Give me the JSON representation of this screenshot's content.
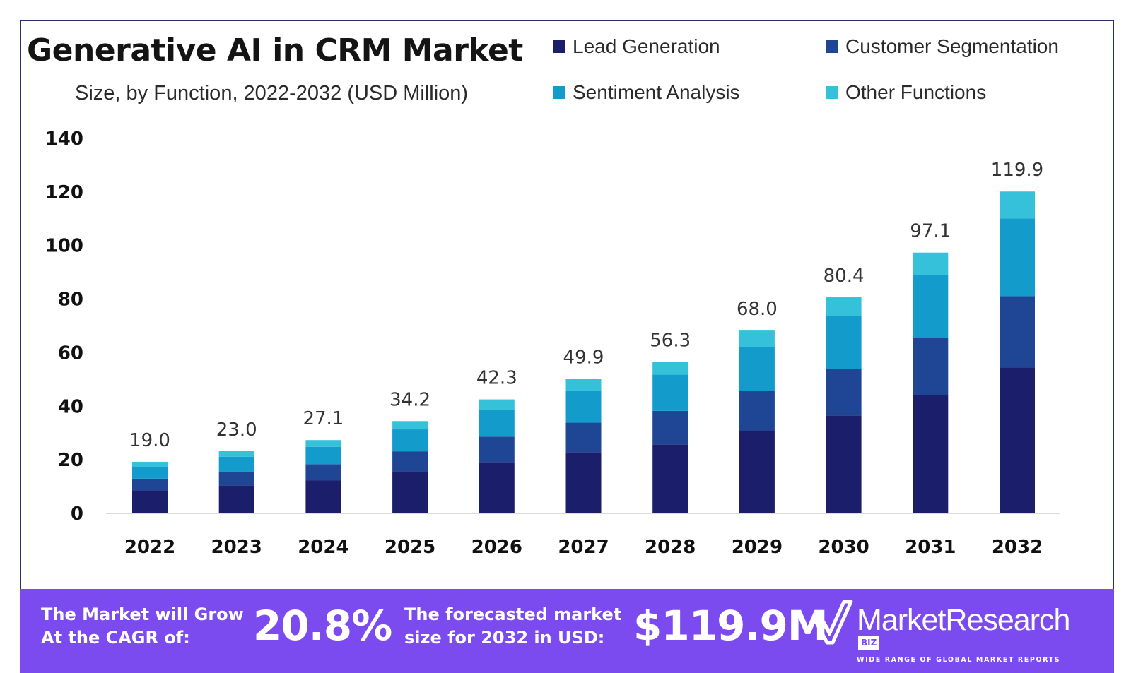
{
  "header": {
    "title": "Generative AI in CRM Market",
    "subtitle": "Size, by Function, 2022-2032 (USD Million)"
  },
  "legend": {
    "items": [
      {
        "label": "Lead Generation",
        "color": "#1b1f6b"
      },
      {
        "label": "Customer Segmentation",
        "color": "#1f4595"
      },
      {
        "label": "Sentiment Analysis",
        "color": "#129bcb"
      },
      {
        "label": "Other Functions",
        "color": "#36c1da"
      }
    ]
  },
  "chart_data": {
    "type": "bar",
    "stacked": true,
    "title": "Generative AI in CRM Market",
    "subtitle": "Size, by Function, 2022-2032 (USD Million)",
    "categories": [
      "2022",
      "2023",
      "2024",
      "2025",
      "2026",
      "2027",
      "2028",
      "2029",
      "2030",
      "2031",
      "2032"
    ],
    "series": [
      {
        "name": "Lead Generation",
        "color": "#1b1f6b",
        "values": [
          8.4,
          10.2,
          12.0,
          15.5,
          18.9,
          22.6,
          25.5,
          30.7,
          36.3,
          43.8,
          54.2
        ]
      },
      {
        "name": "Customer Segmentation",
        "color": "#1f4595",
        "values": [
          4.3,
          5.1,
          6.1,
          7.4,
          9.5,
          11.0,
          12.5,
          14.8,
          17.4,
          21.5,
          26.6
        ]
      },
      {
        "name": "Sentiment Analysis",
        "color": "#129bcb",
        "values": [
          4.4,
          5.6,
          6.5,
          8.2,
          10.1,
          11.9,
          13.6,
          16.4,
          19.6,
          23.3,
          29.0
        ]
      },
      {
        "name": "Other Functions",
        "color": "#36c1da",
        "values": [
          1.9,
          2.1,
          2.5,
          3.1,
          3.8,
          4.4,
          4.7,
          6.1,
          7.1,
          8.5,
          10.1
        ]
      }
    ],
    "totals": [
      "19.0",
      "23.0",
      "27.1",
      "34.2",
      "42.3",
      "49.9",
      "56.3",
      "68.0",
      "80.4",
      "97.1",
      "119.9"
    ],
    "ylim": [
      0,
      140
    ],
    "yticks": [
      0,
      20,
      40,
      60,
      80,
      100,
      120,
      140
    ],
    "xlabel": "",
    "ylabel": "",
    "grid": false,
    "legend_position": "top-right"
  },
  "banner": {
    "growth_text": "The Market will Grow At the CAGR of:",
    "cagr": "20.8%",
    "forecast_text": "The forecasted market size for 2032 in USD:",
    "forecast_value": "$119.9M",
    "brand_name": "MarketResearch",
    "brand_suffix": "BIZ",
    "brand_tagline": "WIDE RANGE OF GLOBAL MARKET REPORTS"
  }
}
